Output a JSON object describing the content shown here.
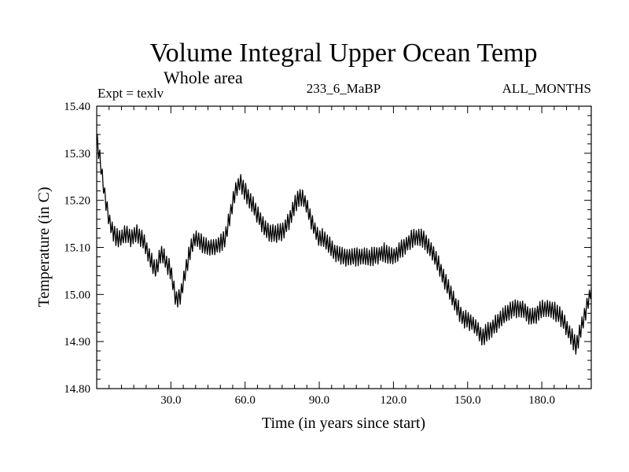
{
  "chart_data": {
    "type": "line",
    "title": "Volume Integral Upper Ocean Temp",
    "subtitle": "Whole area",
    "info_left": "Expt = texlv",
    "info_center": "233_6_MaBP",
    "info_right": "ALL_MONTHS",
    "xlabel": "Time (in years since start)",
    "ylabel": "Temperature (in C)",
    "xlim": [
      0,
      200
    ],
    "ylim": [
      14.8,
      15.4
    ],
    "x_ticks": [
      30,
      60,
      90,
      120,
      150,
      180
    ],
    "x_tick_labels": [
      "30.0",
      "60.0",
      "90.0",
      "120.0",
      "150.0",
      "180.0"
    ],
    "y_ticks": [
      14.8,
      14.9,
      15.0,
      15.1,
      15.2,
      15.3,
      15.4
    ],
    "y_tick_labels": [
      "14.80",
      "14.90",
      "15.00",
      "15.10",
      "15.20",
      "15.30",
      "15.40"
    ],
    "series": [
      {
        "name": "Temperature",
        "color": "#000000",
        "oscillation_amplitude": 0.017,
        "x": [
          0,
          1,
          2,
          3,
          4,
          5,
          6,
          8,
          10,
          12,
          14,
          16,
          18,
          20,
          22,
          24,
          26,
          28,
          30,
          32,
          34,
          36,
          38,
          40,
          44,
          48,
          52,
          54,
          56,
          58,
          60,
          62,
          64,
          66,
          68,
          70,
          72,
          74,
          76,
          78,
          80,
          82,
          84,
          86,
          88,
          90,
          92,
          96,
          100,
          104,
          108,
          112,
          116,
          120,
          124,
          128,
          132,
          136,
          140,
          144,
          148,
          152,
          156,
          158,
          160,
          164,
          168,
          172,
          176,
          180,
          184,
          188,
          192,
          194,
          196,
          198,
          200
        ],
        "y": [
          15.33,
          15.3,
          15.26,
          15.22,
          15.19,
          15.16,
          15.14,
          15.12,
          15.12,
          15.13,
          15.12,
          15.13,
          15.12,
          15.1,
          15.07,
          15.05,
          15.09,
          15.07,
          15.05,
          14.99,
          15.0,
          15.05,
          15.1,
          15.12,
          15.1,
          15.1,
          15.12,
          15.17,
          15.22,
          15.24,
          15.22,
          15.2,
          15.18,
          15.16,
          15.14,
          15.13,
          15.13,
          15.13,
          15.14,
          15.16,
          15.19,
          15.21,
          15.2,
          15.17,
          15.14,
          15.12,
          15.12,
          15.09,
          15.08,
          15.08,
          15.08,
          15.08,
          15.09,
          15.08,
          15.1,
          15.12,
          15.12,
          15.09,
          15.04,
          14.99,
          14.95,
          14.94,
          14.91,
          14.92,
          14.93,
          14.95,
          14.97,
          14.97,
          14.95,
          14.97,
          14.97,
          14.95,
          14.91,
          14.89,
          14.93,
          14.97,
          15.01
        ]
      }
    ]
  }
}
